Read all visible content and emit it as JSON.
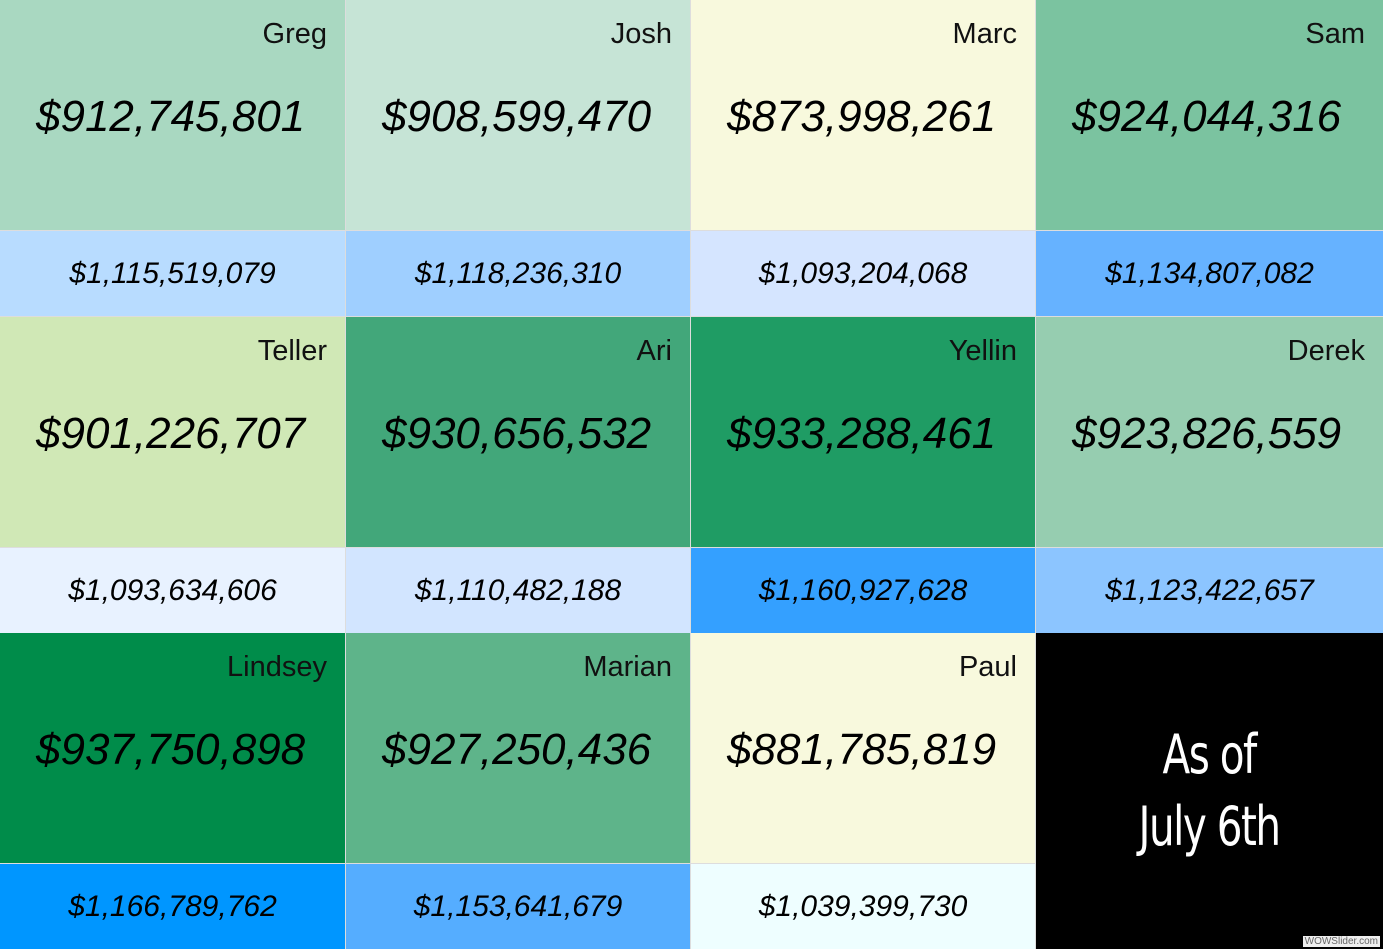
{
  "tiles": [
    {
      "name": "Greg",
      "value": "$912,745,801",
      "subvalue": "$1,115,519,079",
      "color": "#a9d8c1",
      "subcolor": "#b8dcff"
    },
    {
      "name": "Josh",
      "value": "$908,599,470",
      "subvalue": "$1,118,236,310",
      "color": "#c6e4d6",
      "subcolor": "#9fcfff"
    },
    {
      "name": "Marc",
      "value": "$873,998,261",
      "subvalue": "$1,093,204,068",
      "color": "#f8f9dd",
      "subcolor": "#d5e5ff"
    },
    {
      "name": "Sam",
      "value": "$924,044,316",
      "subvalue": "$1,134,807,082",
      "color": "#7bc3a0",
      "subcolor": "#66b2ff"
    },
    {
      "name": "Teller",
      "value": "$901,226,707",
      "subvalue": "$1,093,634,606",
      "color": "#d0e8b6",
      "subcolor": "#e8f2ff"
    },
    {
      "name": "Ari",
      "value": "$930,656,532",
      "subvalue": "$1,110,482,188",
      "color": "#42a77a",
      "subcolor": "#d2e5ff"
    },
    {
      "name": "Yellin",
      "value": "$933,288,461",
      "subvalue": "$1,160,927,628",
      "color": "#1f9c64",
      "subcolor": "#34a0ff"
    },
    {
      "name": "Derek",
      "value": "$923,826,559",
      "subvalue": "$1,123,422,657",
      "color": "#96cdb0",
      "subcolor": "#8cc5ff"
    },
    {
      "name": "Lindsey",
      "value": "$937,750,898",
      "subvalue": "$1,166,789,762",
      "color": "#008c4a",
      "subcolor": "#0096ff"
    },
    {
      "name": "Marian",
      "value": "$927,250,436",
      "subvalue": "$1,153,641,679",
      "color": "#5eb48a",
      "subcolor": "#55adff"
    },
    {
      "name": "Paul",
      "value": "$881,785,819",
      "subvalue": "$1,039,399,730",
      "color": "#f8f9dd",
      "subcolor": "#eefeff"
    }
  ],
  "note": [
    "As of",
    "July 6th"
  ],
  "watermark": "WOWSlider.com"
}
